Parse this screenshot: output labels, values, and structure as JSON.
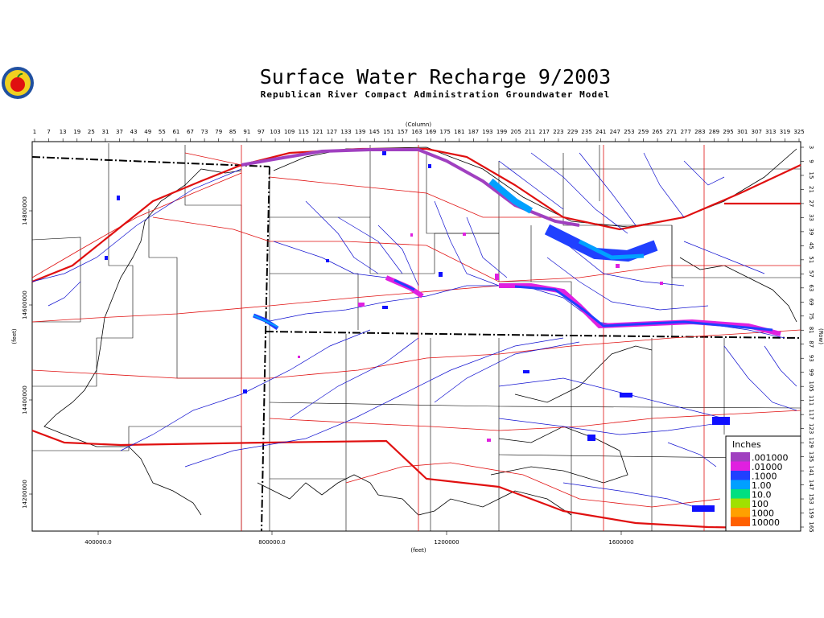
{
  "header": {
    "title": "Surface Water Recharge 9/2003",
    "subtitle": "Republican River Compact Administration Groundwater Model"
  },
  "axes": {
    "column_title": "(Column)",
    "row_title": "(Row)",
    "x_title": "(feet)",
    "y_title": "(feet)",
    "columns": [
      "1",
      "7",
      "13",
      "19",
      "25",
      "31",
      "37",
      "43",
      "49",
      "55",
      "61",
      "67",
      "73",
      "79",
      "85",
      "91",
      "97",
      "103",
      "109",
      "115",
      "121",
      "127",
      "133",
      "139",
      "145",
      "151",
      "157",
      "163",
      "169",
      "175",
      "181",
      "187",
      "193",
      "199",
      "205",
      "211",
      "217",
      "223",
      "229",
      "235",
      "241",
      "247",
      "253",
      "259",
      "265",
      "271",
      "277",
      "283",
      "289",
      "295",
      "301",
      "307",
      "313",
      "319",
      "325"
    ],
    "rows": [
      "3",
      "9",
      "15",
      "21",
      "27",
      "33",
      "39",
      "45",
      "51",
      "57",
      "63",
      "69",
      "75",
      "81",
      "87",
      "93",
      "99",
      "105",
      "111",
      "117",
      "123",
      "129",
      "135",
      "141",
      "147",
      "153",
      "159",
      "165"
    ],
    "x_feet": [
      "400000.0",
      "800000.0",
      "1200000",
      "1600000"
    ],
    "y_feet": [
      "14800000",
      "14600000",
      "14400000",
      "14200000"
    ]
  },
  "legend": {
    "title": "Inches",
    "items": [
      {
        "label": ".001000",
        "color": "#a040c0"
      },
      {
        "label": ".01000",
        "color": "#e020e0"
      },
      {
        "label": ".1000",
        "color": "#2040ff"
      },
      {
        "label": "1.00",
        "color": "#00a0ff"
      },
      {
        "label": "10.0",
        "color": "#00e080"
      },
      {
        "label": "100",
        "color": "#a0e000"
      },
      {
        "label": "1000",
        "color": "#ffa000"
      },
      {
        "label": "10000",
        "color": "#ff6000"
      }
    ]
  }
}
